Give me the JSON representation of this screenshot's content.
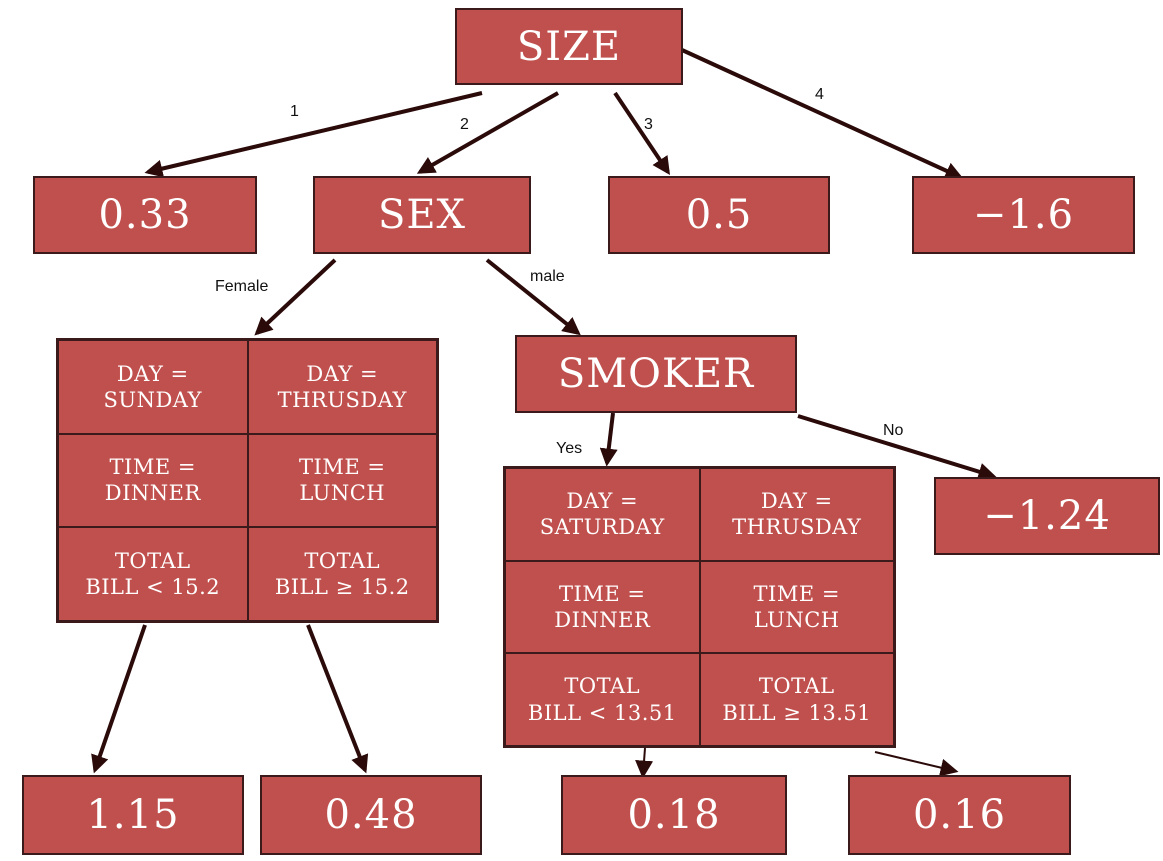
{
  "colors": {
    "node_fill": "#c0504d",
    "node_border": "#3a1a1a",
    "text": "#ffffff",
    "arrow": "#2b0a0a"
  },
  "nodes": {
    "size": "SIZE",
    "sex": "SEX",
    "smoker": "SMOKER",
    "leaf_size_1": "0.33",
    "leaf_size_3": "0.5",
    "leaf_size_4": "−1.6",
    "leaf_smoker_no": "−1.24",
    "leaf_female_1": "1.15",
    "leaf_female_2": "0.48",
    "leaf_yes_1": "0.18",
    "leaf_yes_2": "0.16"
  },
  "edge_labels": {
    "size_1": "1",
    "size_2": "2",
    "size_3": "3",
    "size_4": "4",
    "female": "Female",
    "male": "male",
    "yes": "Yes",
    "no": "No"
  },
  "female_table": [
    [
      "DAY =\nSUNDAY",
      "DAY =\nTHRUSDAY"
    ],
    [
      "TIME =\nDINNER",
      "TIME =\nLUNCH"
    ],
    [
      "TOTAL\nBILL < 15.2",
      "TOTAL\nBILL ≥ 15.2"
    ]
  ],
  "yes_table": [
    [
      "DAY =\nSATURDAY",
      "DAY =\nTHRUSDAY"
    ],
    [
      "TIME =\nDINNER",
      "TIME =\nLUNCH"
    ],
    [
      "TOTAL\nBILL < 13.51",
      "TOTAL\nBILL ≥ 13.51"
    ]
  ]
}
